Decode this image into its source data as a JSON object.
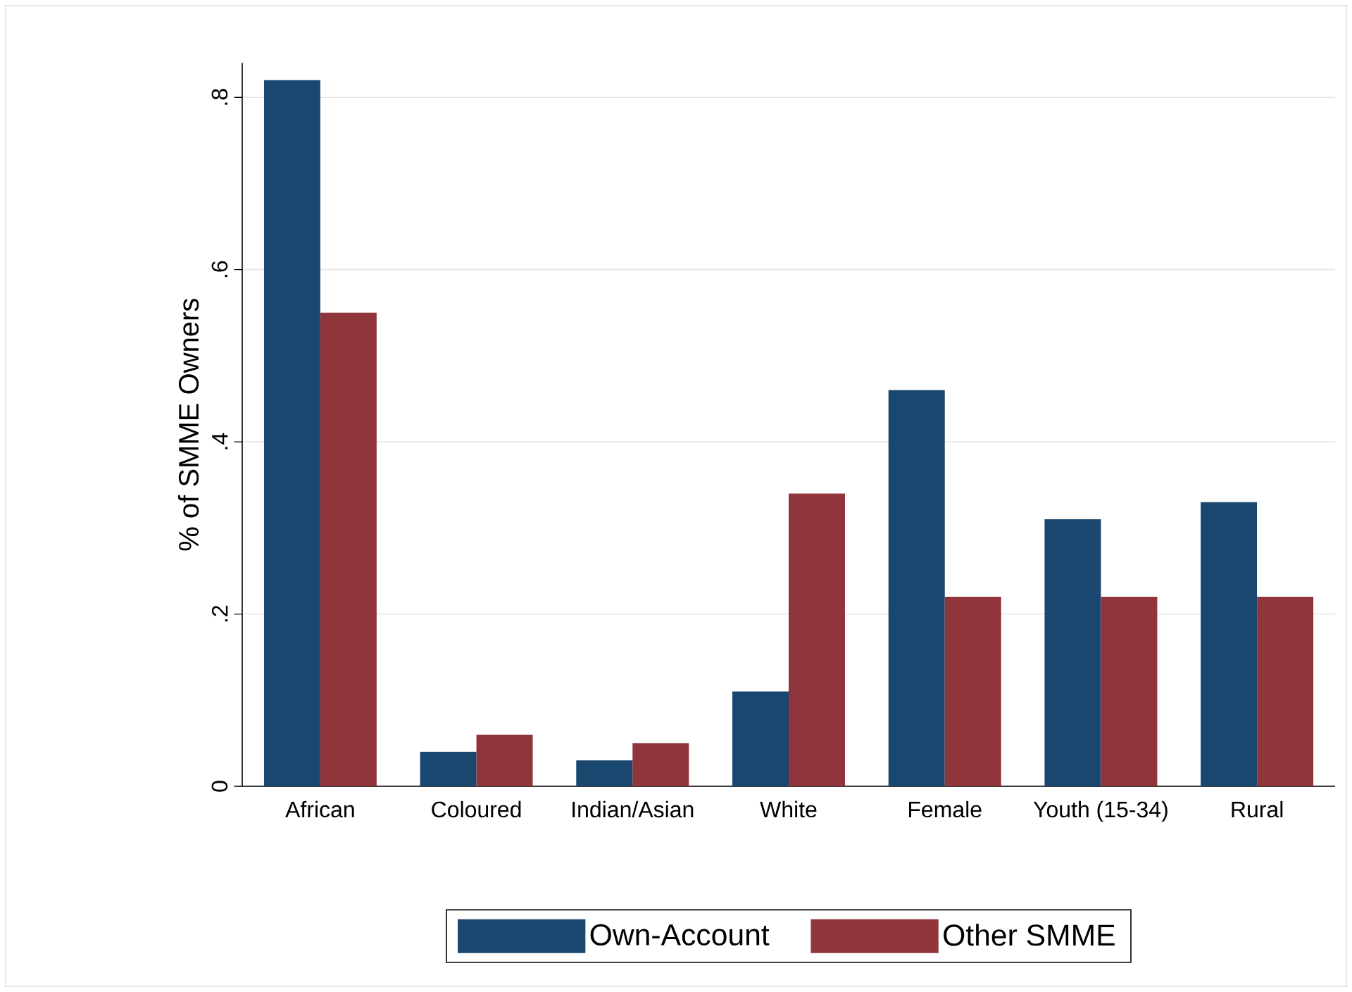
{
  "chart_data": {
    "type": "bar",
    "ylabel": "% of SMME Owners",
    "categories": [
      "African",
      "Coloured",
      "Indian/Asian",
      "White",
      "Female",
      "Youth (15-34)",
      "Rural"
    ],
    "series": [
      {
        "name": "Own-Account",
        "color": "#1a476f",
        "values": [
          0.82,
          0.04,
          0.03,
          0.11,
          0.46,
          0.31,
          0.33
        ]
      },
      {
        "name": "Other SMME",
        "color": "#90353b",
        "values": [
          0.55,
          0.06,
          0.05,
          0.34,
          0.22,
          0.22,
          0.22
        ]
      }
    ],
    "ylim": [
      0,
      0.84
    ],
    "yticks": [
      0,
      {
        "value": 0.2,
        "label": ".2"
      },
      {
        "value": 0.4,
        "label": ".4"
      },
      {
        "value": 0.6,
        "label": ".6"
      },
      {
        "value": 0.8,
        "label": ".8"
      }
    ],
    "grid": "y",
    "legend": "bottom"
  }
}
